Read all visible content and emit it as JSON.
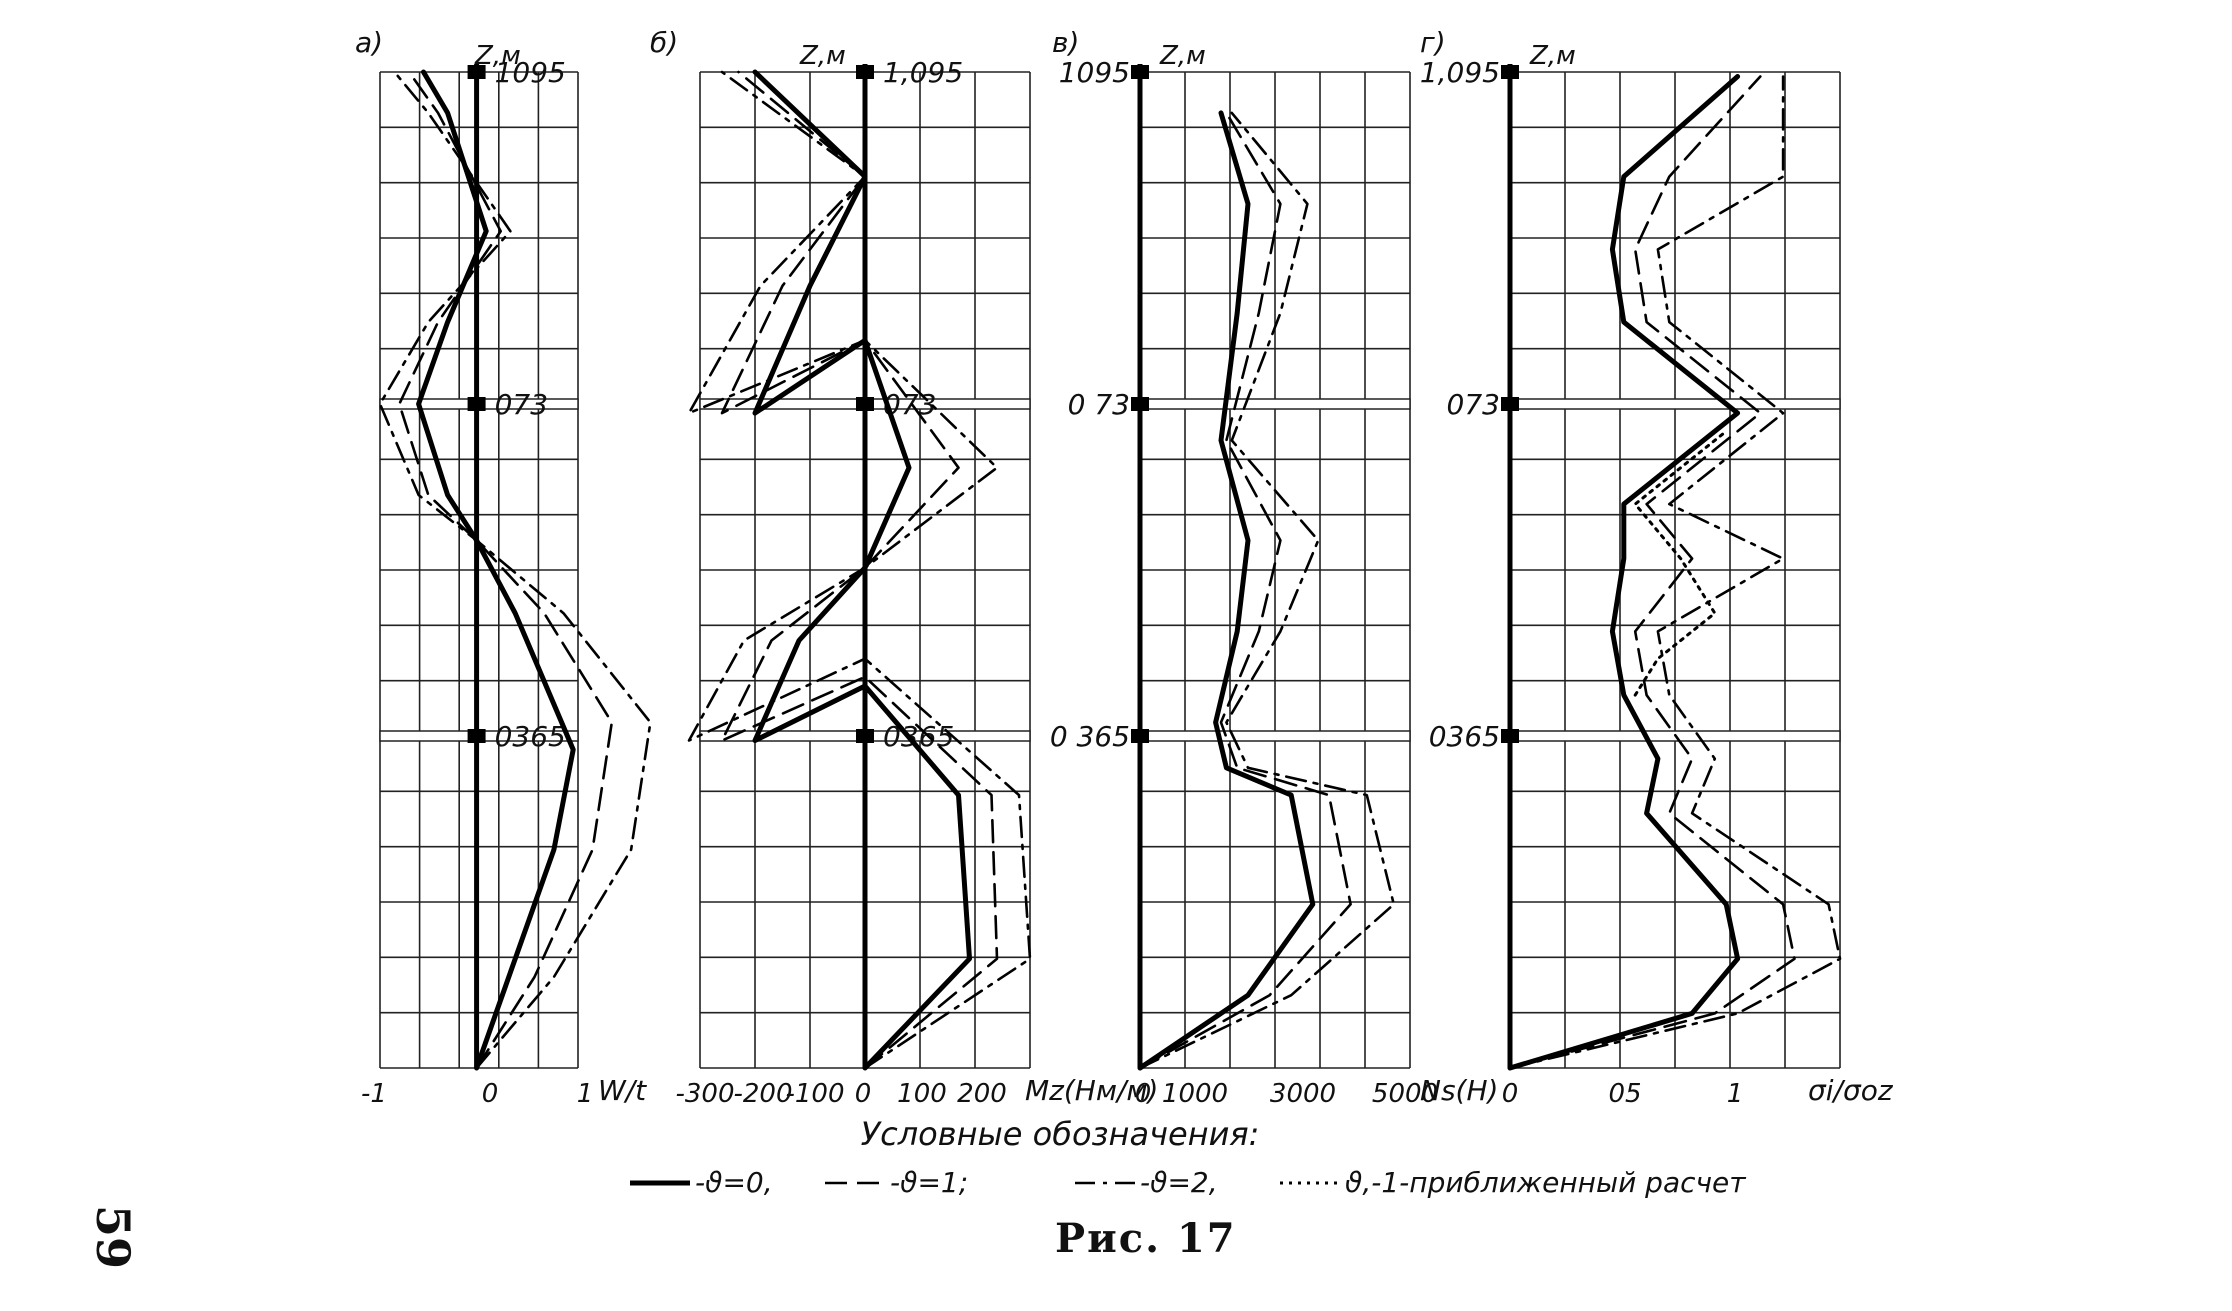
{
  "page_number": "59",
  "caption": "Рис. 17",
  "legend": {
    "title": "Условные обозначения:",
    "items": [
      "-ϑ=0,",
      "-ϑ=1;",
      "-ϑ=2,",
      "ϑ,-1-приближенный расчет"
    ]
  },
  "z_levels": [
    "1,095",
    "0,73",
    "0,365"
  ],
  "chart_data": [
    {
      "type": "line",
      "panel": "а)",
      "z_label": "Z,м",
      "level_labels": [
        "1095",
        "073",
        "0365"
      ],
      "xlabel": "W/t",
      "tick_labels": [
        "-1",
        "0",
        "1"
      ],
      "xlim": [
        -1,
        1.05
      ],
      "ylim": [
        0,
        1.095
      ],
      "grid": true,
      "series": [
        {
          "style": "solid",
          "points": [
            [
              0,
              0
            ],
            [
              0.4,
              0.12
            ],
            [
              0.8,
              0.24
            ],
            [
              1.0,
              0.35
            ],
            [
              0.4,
              0.5
            ],
            [
              0,
              0.58
            ],
            [
              -0.3,
              0.63
            ],
            [
              -0.6,
              0.73
            ],
            [
              -0.3,
              0.82
            ],
            [
              0.1,
              0.92
            ],
            [
              -0.3,
              1.05
            ],
            [
              -0.55,
              1.095
            ]
          ]
        },
        {
          "style": "dashed",
          "points": [
            [
              0,
              0
            ],
            [
              0.6,
              0.1
            ],
            [
              1.2,
              0.24
            ],
            [
              1.4,
              0.38
            ],
            [
              0.7,
              0.5
            ],
            [
              0,
              0.58
            ],
            [
              -0.5,
              0.63
            ],
            [
              -0.8,
              0.73
            ],
            [
              -0.4,
              0.82
            ],
            [
              0.25,
              0.92
            ],
            [
              -0.4,
              1.05
            ],
            [
              -0.7,
              1.095
            ]
          ]
        },
        {
          "style": "dash-dot",
          "points": [
            [
              0,
              0
            ],
            [
              0.8,
              0.1
            ],
            [
              1.6,
              0.24
            ],
            [
              1.8,
              0.38
            ],
            [
              0.9,
              0.5
            ],
            [
              0,
              0.58
            ],
            [
              -0.6,
              0.63
            ],
            [
              -1.0,
              0.73
            ],
            [
              -0.5,
              0.82
            ],
            [
              0.35,
              0.92
            ],
            [
              -0.5,
              1.05
            ],
            [
              -0.85,
              1.095
            ]
          ]
        }
      ]
    },
    {
      "type": "line",
      "panel": "б)",
      "z_label": "Z,м",
      "level_labels": [
        "1,095",
        "073",
        "0365"
      ],
      "xlabel": "Mz(Нм/м)",
      "tick_labels": [
        "-300",
        "-200",
        "-100",
        "0",
        "100",
        "200"
      ],
      "xlim": [
        -300,
        300
      ],
      "ylim": [
        0,
        1.095
      ],
      "grid": true,
      "series": [
        {
          "style": "solid",
          "points": [
            [
              0,
              0
            ],
            [
              190,
              0.12
            ],
            [
              170,
              0.3
            ],
            [
              0,
              0.42
            ],
            [
              -200,
              0.36
            ],
            [
              -120,
              0.47
            ],
            [
              0,
              0.55
            ],
            [
              80,
              0.66
            ],
            [
              0,
              0.8
            ],
            [
              -200,
              0.72
            ],
            [
              -100,
              0.86
            ],
            [
              0,
              0.98
            ],
            [
              -200,
              1.095
            ]
          ]
        },
        {
          "style": "dashed",
          "points": [
            [
              0,
              0
            ],
            [
              240,
              0.12
            ],
            [
              230,
              0.3
            ],
            [
              0,
              0.43
            ],
            [
              -260,
              0.36
            ],
            [
              -170,
              0.47
            ],
            [
              0,
              0.55
            ],
            [
              170,
              0.66
            ],
            [
              0,
              0.8
            ],
            [
              -260,
              0.72
            ],
            [
              -150,
              0.86
            ],
            [
              0,
              0.98
            ],
            [
              -230,
              1.095
            ]
          ]
        },
        {
          "style": "dash-dot",
          "points": [
            [
              0,
              0
            ],
            [
              300,
              0.12
            ],
            [
              280,
              0.3
            ],
            [
              0,
              0.45
            ],
            [
              -320,
              0.36
            ],
            [
              -220,
              0.47
            ],
            [
              0,
              0.55
            ],
            [
              240,
              0.66
            ],
            [
              0,
              0.8
            ],
            [
              -320,
              0.72
            ],
            [
              -190,
              0.86
            ],
            [
              0,
              0.98
            ],
            [
              -260,
              1.095
            ]
          ]
        }
      ]
    },
    {
      "type": "line",
      "panel": "в)",
      "z_label": "Z,м",
      "level_labels": [
        "1095",
        "0 73",
        "0 365"
      ],
      "xlabel": "Ns(Н)",
      "tick_labels": [
        "0",
        "1000",
        "3000",
        "5000"
      ],
      "xlim": [
        0,
        5000
      ],
      "ylim": [
        0,
        1.095
      ],
      "grid": true,
      "series": [
        {
          "style": "solid",
          "points": [
            [
              0,
              0
            ],
            [
              2000,
              0.08
            ],
            [
              3200,
              0.18
            ],
            [
              2800,
              0.3
            ],
            [
              1600,
              0.33
            ],
            [
              1400,
              0.38
            ],
            [
              1800,
              0.48
            ],
            [
              2000,
              0.58
            ],
            [
              1500,
              0.69
            ],
            [
              1800,
              0.83
            ],
            [
              2000,
              0.95
            ],
            [
              1500,
              1.05
            ]
          ]
        },
        {
          "style": "dashed",
          "points": [
            [
              0,
              0
            ],
            [
              2400,
              0.08
            ],
            [
              3900,
              0.18
            ],
            [
              3500,
              0.3
            ],
            [
              1800,
              0.33
            ],
            [
              1500,
              0.38
            ],
            [
              2200,
              0.48
            ],
            [
              2600,
              0.58
            ],
            [
              1600,
              0.69
            ],
            [
              2200,
              0.83
            ],
            [
              2600,
              0.95
            ],
            [
              1600,
              1.05
            ]
          ]
        },
        {
          "style": "dash-dot",
          "points": [
            [
              0,
              0
            ],
            [
              2800,
              0.08
            ],
            [
              4700,
              0.18
            ],
            [
              4200,
              0.3
            ],
            [
              2000,
              0.33
            ],
            [
              1600,
              0.38
            ],
            [
              2600,
              0.48
            ],
            [
              3300,
              0.58
            ],
            [
              1700,
              0.69
            ],
            [
              2600,
              0.83
            ],
            [
              3100,
              0.95
            ],
            [
              1700,
              1.05
            ]
          ]
        }
      ]
    },
    {
      "type": "line",
      "panel": "г)",
      "z_label": "Z,м",
      "level_labels": [
        "1,095",
        "073",
        "0365"
      ],
      "xlabel": "σi/σoz",
      "tick_labels": [
        "0",
        "05",
        "1"
      ],
      "xlim": [
        0,
        1.45
      ],
      "ylim": [
        0,
        1.095
      ],
      "grid": true,
      "series": [
        {
          "style": "solid",
          "points": [
            [
              0,
              0
            ],
            [
              0.8,
              0.06
            ],
            [
              1.0,
              0.12
            ],
            [
              0.95,
              0.18
            ],
            [
              0.6,
              0.28
            ],
            [
              0.65,
              0.34
            ],
            [
              0.5,
              0.41
            ],
            [
              0.45,
              0.48
            ],
            [
              0.5,
              0.56
            ],
            [
              0.5,
              0.62
            ],
            [
              1.0,
              0.72
            ],
            [
              0.5,
              0.82
            ],
            [
              0.45,
              0.9
            ],
            [
              0.5,
              0.98
            ],
            [
              1.0,
              1.09
            ]
          ]
        },
        {
          "style": "dashed",
          "points": [
            [
              0,
              0
            ],
            [
              0.9,
              0.06
            ],
            [
              1.25,
              0.12
            ],
            [
              1.2,
              0.18
            ],
            [
              0.7,
              0.28
            ],
            [
              0.8,
              0.34
            ],
            [
              0.6,
              0.41
            ],
            [
              0.55,
              0.48
            ],
            [
              0.8,
              0.56
            ],
            [
              0.6,
              0.62
            ],
            [
              1.1,
              0.72
            ],
            [
              0.6,
              0.82
            ],
            [
              0.55,
              0.9
            ],
            [
              0.7,
              0.98
            ],
            [
              1.1,
              1.09
            ]
          ]
        },
        {
          "style": "dash-dot",
          "points": [
            [
              0,
              0
            ],
            [
              1.0,
              0.06
            ],
            [
              1.45,
              0.12
            ],
            [
              1.4,
              0.18
            ],
            [
              0.8,
              0.28
            ],
            [
              0.9,
              0.34
            ],
            [
              0.7,
              0.41
            ],
            [
              0.65,
              0.48
            ],
            [
              1.2,
              0.56
            ],
            [
              0.7,
              0.62
            ],
            [
              1.2,
              0.72
            ],
            [
              0.7,
              0.82
            ],
            [
              0.65,
              0.9
            ],
            [
              1.2,
              0.98
            ],
            [
              1.2,
              1.09
            ]
          ]
        },
        {
          "style": "dotted",
          "points": [
            [
              0.55,
              0.41
            ],
            [
              0.65,
              0.45
            ],
            [
              0.9,
              0.5
            ],
            [
              0.75,
              0.56
            ],
            [
              0.55,
              0.62
            ],
            [
              0.95,
              0.7
            ]
          ]
        }
      ]
    }
  ]
}
